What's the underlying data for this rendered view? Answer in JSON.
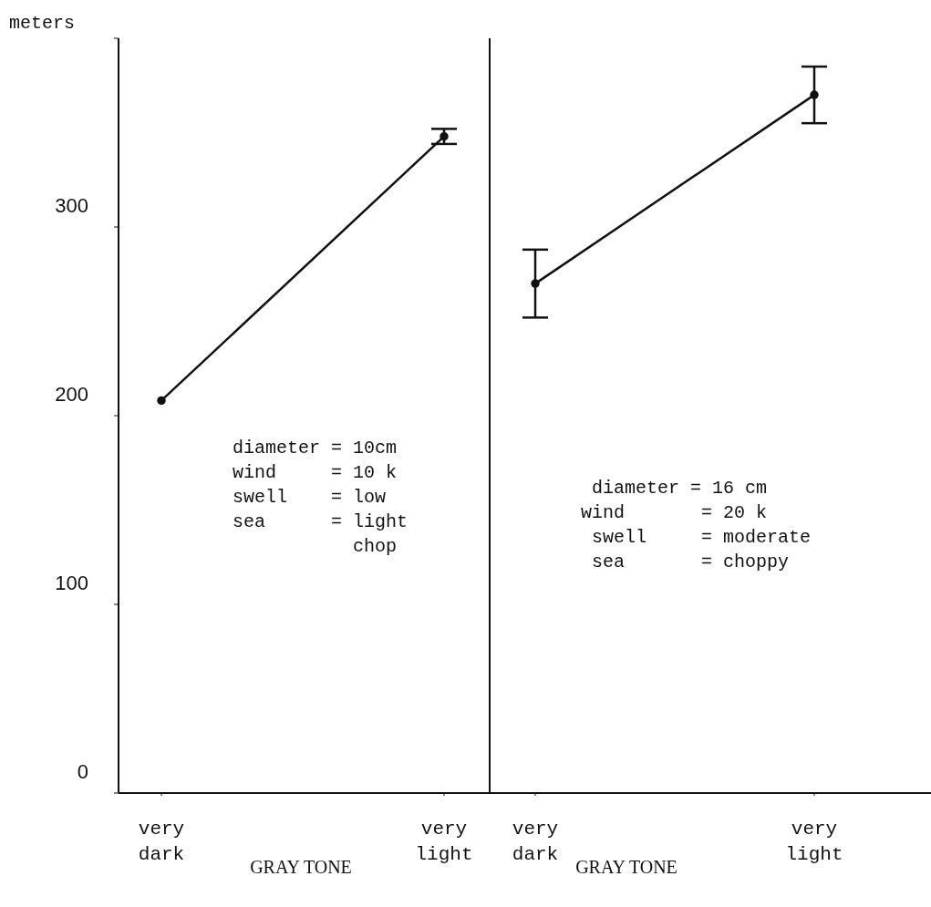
{
  "chart_data": [
    {
      "type": "line",
      "categories": [
        "very dark",
        "very light"
      ],
      "xlabel": "GRAY TONE",
      "ylabel": "meters",
      "ylim": [
        0,
        400
      ],
      "yticks": [
        0,
        100,
        200,
        300,
        {
          "value": 400,
          "label": null
        }
      ],
      "marker": "circle",
      "series": [
        {
          "color": "#111111",
          "values": [
            208,
            348
          ],
          "errors": [
            null,
            4
          ]
        }
      ],
      "annotations": [
        "diameter = 10cm",
        "wind     = 10 k",
        "swell    = low",
        "sea      = light",
        "           chop"
      ]
    },
    {
      "type": "line",
      "categories": [
        "very dark",
        "very light"
      ],
      "xlabel": "GRAY TONE",
      "ylim": [
        0,
        400
      ],
      "yticks": [
        0,
        100,
        200,
        300
      ],
      "tick_labels": "x",
      "marker": "circle",
      "series": [
        {
          "color": "#111111",
          "values": [
            270,
            370
          ],
          "errors": [
            18,
            15
          ]
        }
      ],
      "annotations": [
        " diameter = 16 cm",
        "wind       = 20 k",
        " swell     = moderate",
        " sea       = choppy"
      ]
    }
  ]
}
